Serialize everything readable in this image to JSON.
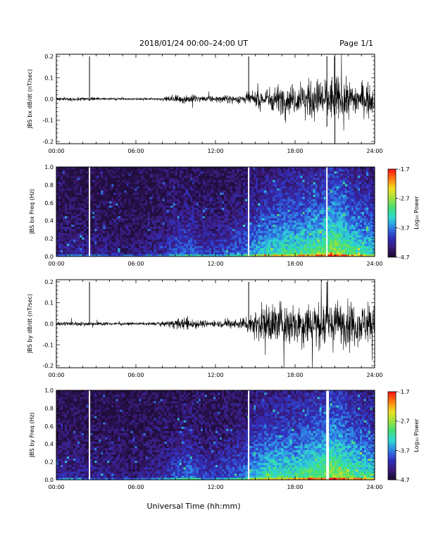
{
  "header": {
    "title": "2018/01/24  00:00–24:00 UT",
    "page": "Page 1/1"
  },
  "footer": {
    "xlabel": "Universal Time (hh:mm)"
  },
  "colors": {
    "cmap": [
      "#1a0a2e",
      "#3a1a78",
      "#3030c0",
      "#2f7fe6",
      "#2fd6d6",
      "#3fe07a",
      "#9ee23a",
      "#f0e020",
      "#ff7a10",
      "#ff1010"
    ]
  },
  "colorbar": {
    "label": "Log₁₀ Power",
    "ticks": [
      "-1.7",
      "-2.7",
      "-3.7",
      "-4.7"
    ]
  },
  "chart_data": [
    {
      "type": "line",
      "ylabel": "JBS bx dB/dt (nT/sec)",
      "xlabel": "",
      "xlim": [
        0,
        24
      ],
      "ylim": [
        -0.21,
        0.21
      ],
      "yticks": [
        "0.2",
        "0.1",
        "0.0",
        "-0.1",
        "-0.2"
      ],
      "xticks": [
        "00:00",
        "06:00",
        "12:00",
        "18:00",
        "24:00"
      ],
      "amplitude_envelope": {
        "hours": [
          0,
          3,
          6,
          8,
          9,
          10,
          11,
          12,
          14,
          15,
          16,
          17,
          18,
          19,
          20,
          21,
          22,
          23,
          24
        ],
        "amplitude": [
          0.008,
          0.006,
          0.004,
          0.006,
          0.015,
          0.02,
          0.012,
          0.012,
          0.02,
          0.03,
          0.05,
          0.06,
          0.06,
          0.075,
          0.09,
          0.1,
          0.075,
          0.065,
          0.06
        ]
      },
      "spikes": [
        {
          "hour": 2.5,
          "top": 0.2,
          "bottom": 0.0
        },
        {
          "hour": 14.5,
          "top": 0.2,
          "bottom": 0.0
        },
        {
          "hour": 20.4,
          "top": 0.2,
          "bottom": -0.13
        },
        {
          "hour": 21.0,
          "top": 0.2,
          "bottom": -0.21
        }
      ]
    },
    {
      "type": "heatmap",
      "ylabel": "JBS bx Freq (Hz)",
      "xlim": [
        0,
        24
      ],
      "ylim": [
        0,
        1.0
      ],
      "yticks": [
        "1.0",
        "0.8",
        "0.6",
        "0.4",
        "0.2",
        "0.0"
      ],
      "xticks": [
        "00:00",
        "06:00",
        "12:00",
        "18:00",
        "24:00"
      ],
      "zlim": [
        -4.7,
        -1.7
      ],
      "gap_hours": [
        2.5,
        14.5,
        20.4
      ],
      "activity": {
        "hours": [
          0,
          3,
          6,
          8,
          9,
          10,
          11,
          12,
          14,
          15,
          16,
          17,
          18,
          19,
          20,
          21,
          22,
          23,
          24
        ],
        "level": [
          0.2,
          0.18,
          0.12,
          0.22,
          0.35,
          0.4,
          0.3,
          0.28,
          0.4,
          0.55,
          0.65,
          0.7,
          0.7,
          0.75,
          0.8,
          0.9,
          0.78,
          0.68,
          0.62
        ]
      }
    },
    {
      "type": "line",
      "ylabel": "JBS by dB/dt (nT/sec)",
      "xlabel": "",
      "xlim": [
        0,
        24
      ],
      "ylim": [
        -0.21,
        0.21
      ],
      "yticks": [
        "0.2",
        "0.1",
        "0.0",
        "-0.1",
        "-0.2"
      ],
      "xticks": [
        "00:00",
        "06:00",
        "12:00",
        "18:00",
        "24:00"
      ],
      "amplitude_envelope": {
        "hours": [
          0,
          3,
          6,
          8,
          9,
          10,
          11,
          12,
          14,
          15,
          16,
          17,
          18,
          19,
          20,
          21,
          22,
          23,
          24
        ],
        "amplitude": [
          0.01,
          0.008,
          0.005,
          0.008,
          0.02,
          0.028,
          0.015,
          0.012,
          0.025,
          0.06,
          0.09,
          0.095,
          0.09,
          0.1,
          0.1,
          0.1,
          0.09,
          0.085,
          0.08
        ]
      },
      "spikes": [
        {
          "hour": 2.5,
          "top": 0.2,
          "bottom": 0.0
        },
        {
          "hour": 14.5,
          "top": 0.2,
          "bottom": 0.0
        },
        {
          "hour": 20.4,
          "top": 0.2,
          "bottom": 0.0
        }
      ]
    },
    {
      "type": "heatmap",
      "ylabel": "JBS by Freq (Hz)",
      "xlim": [
        0,
        24
      ],
      "ylim": [
        0,
        1.0
      ],
      "yticks": [
        "1.0",
        "0.8",
        "0.6",
        "0.4",
        "0.2",
        "0.0"
      ],
      "xticks": [
        "00:00",
        "06:00",
        "12:00",
        "18:00",
        "24:00"
      ],
      "zlim": [
        -4.7,
        -1.7
      ],
      "gap_hours": [
        2.5,
        14.5,
        20.4,
        20.5
      ],
      "activity": {
        "hours": [
          0,
          3,
          6,
          8,
          9,
          10,
          11,
          12,
          14,
          15,
          16,
          17,
          18,
          19,
          20,
          21,
          22,
          23,
          24
        ],
        "level": [
          0.2,
          0.18,
          0.14,
          0.22,
          0.35,
          0.42,
          0.3,
          0.28,
          0.42,
          0.6,
          0.7,
          0.72,
          0.7,
          0.8,
          0.82,
          0.9,
          0.8,
          0.72,
          0.66
        ]
      }
    }
  ]
}
